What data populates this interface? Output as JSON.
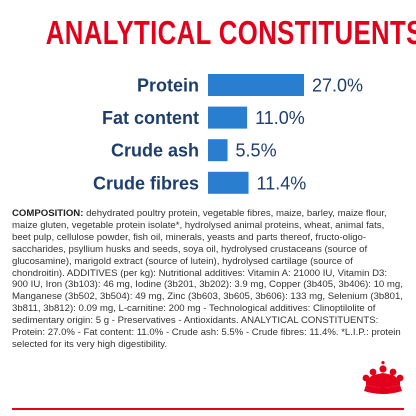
{
  "title": "ANALYTICAL CONSTITUENTS",
  "chart_data": {
    "type": "bar",
    "orientation": "horizontal",
    "categories": [
      "Protein",
      "Fat content",
      "Crude ash",
      "Crude fibres"
    ],
    "values": [
      27.0,
      11.0,
      5.5,
      11.4
    ],
    "labels": [
      "27.0%",
      "11.0%",
      "5.5%",
      "11.4%"
    ],
    "unit": "%",
    "xlim": [
      0,
      27.0
    ],
    "bar_color": "#2a7ed0",
    "label_color": "#1e3e6e",
    "title": "ANALYTICAL CONSTITUENTS",
    "grid": false,
    "legend": false
  },
  "composition": {
    "heading": "COMPOSITION:",
    "text": " dehydrated poultry protein, vegetable fibres, maize, barley, maize flour, maize gluten, vegetable protein isolate*, hydrolysed animal proteins, wheat, animal fats, beet pulp, cellulose powder, fish oil, minerals, yeasts and parts thereof, fructo-oligo-saccharides, psyllium husks and seeds, soya oil, hydrolysed crustaceans (source of glucosamine), marigold extract (source of lutein), hydrolysed cartilage (source of chondroitin). ADDITIVES (per kg): Nutritional additives: Vitamin A: 21000 IU, Vitamin D3: 900 IU, Iron (3b103): 46 mg, Iodine (3b201, 3b202): 3.9 mg, Copper (3b405, 3b406): 10 mg, Manganese (3b502, 3b504): 49 mg, Zinc (3b603, 3b605, 3b606): 133 mg, Selenium (3b801, 3b811, 3b812): 0.09 mg, L-carnitine: 200 mg - Technological additives: Clinoptilolite of sedimentary origin: 5 g - Preservatives - Antioxidants. ANALYTICAL CONSTITUENTS: Protein: 27.0% - Fat content: 11.0% - Crude ash: 5.5% - Crude fibres: 11.4%. *L.I.P.: protein selected for its very high digestibility."
  },
  "logo": {
    "name": "crown-logo",
    "color": "#e2001a"
  },
  "colors": {
    "accent": "#e2001a",
    "bar": "#2a7ed0",
    "label": "#1e3e6e",
    "text": "#333333"
  }
}
